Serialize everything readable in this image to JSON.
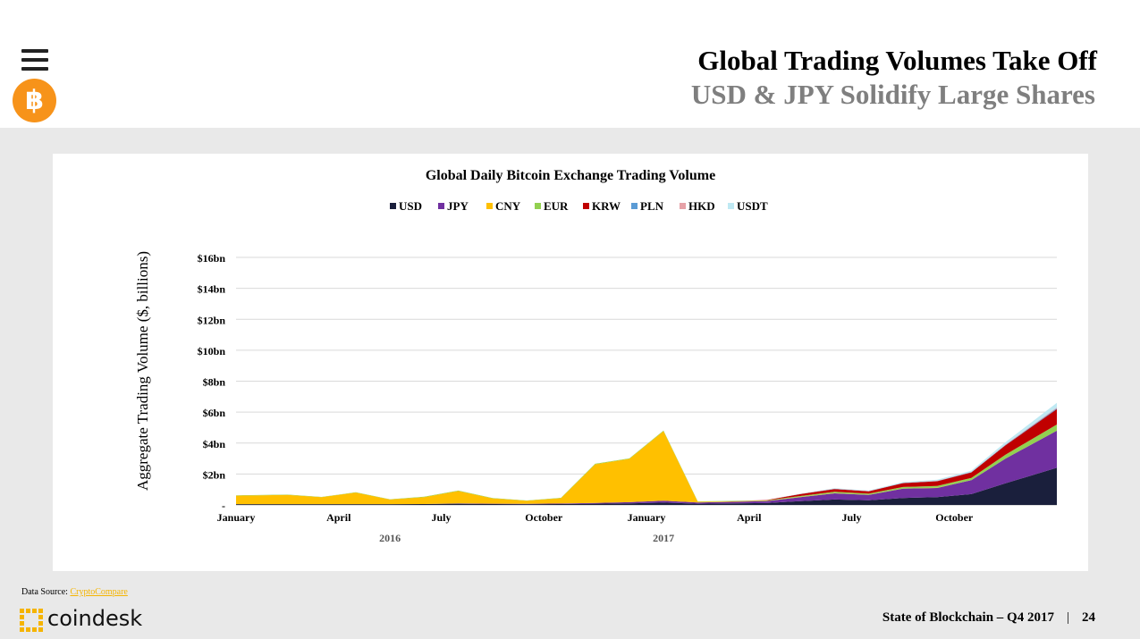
{
  "header": {
    "title": "Global Trading Volumes Take Off",
    "subtitle": "USD & JPY Solidify Large Shares",
    "logo_glyph": "฿",
    "menu_icon": "hamburger-menu-icon",
    "logo_icon": "bitcoin-logo-icon"
  },
  "chart_data": {
    "type": "area",
    "stacked": true,
    "title": "Global Daily Bitcoin Exchange Trading Volume",
    "ylabel": "Aggregate Trading Volume ($, billions)",
    "xlabel": "",
    "ylim": [
      0,
      16
    ],
    "yticks": [
      {
        "value": 0,
        "label": "-"
      },
      {
        "value": 2,
        "label": "$2bn"
      },
      {
        "value": 4,
        "label": "$4bn"
      },
      {
        "value": 6,
        "label": "$6bn"
      },
      {
        "value": 8,
        "label": "$8bn"
      },
      {
        "value": 10,
        "label": "$10bn"
      },
      {
        "value": 12,
        "label": "$12bn"
      },
      {
        "value": 14,
        "label": "$14bn"
      },
      {
        "value": 16,
        "label": "$16bn"
      }
    ],
    "xlim": [
      "2016-01",
      "2017-12"
    ],
    "xticks": [
      {
        "value": "2016-01",
        "label": "January"
      },
      {
        "value": "2016-04",
        "label": "April"
      },
      {
        "value": "2016-07",
        "label": "July"
      },
      {
        "value": "2016-10",
        "label": "October"
      },
      {
        "value": "2017-01",
        "label": "January"
      },
      {
        "value": "2017-04",
        "label": "April"
      },
      {
        "value": "2017-07",
        "label": "July"
      },
      {
        "value": "2017-10",
        "label": "October"
      }
    ],
    "year_labels": [
      {
        "value": "2016-05",
        "label": "2016"
      },
      {
        "value": "2017-01",
        "label": "2017"
      }
    ],
    "grid": true,
    "legend_position": "top",
    "x": [
      "2016-01",
      "2016-02",
      "2016-03",
      "2016-04",
      "2016-05",
      "2016-06",
      "2016-07",
      "2016-08",
      "2016-09",
      "2016-10",
      "2016-11",
      "2016-12",
      "2017-01",
      "2017-02",
      "2017-03",
      "2017-04",
      "2017-05",
      "2017-06",
      "2017-07",
      "2017-08",
      "2017-09",
      "2017-10",
      "2017-11",
      "2017-12"
    ],
    "series": [
      {
        "name": "USD",
        "color": "#1a1f3c",
        "values": [
          0.05,
          0.05,
          0.05,
          0.05,
          0.05,
          0.06,
          0.08,
          0.06,
          0.05,
          0.06,
          0.08,
          0.1,
          0.15,
          0.08,
          0.1,
          0.12,
          0.25,
          0.35,
          0.3,
          0.45,
          0.5,
          0.7,
          1.4,
          2.4
        ]
      },
      {
        "name": "JPY",
        "color": "#7030a0",
        "values": [
          0.0,
          0.0,
          0.0,
          0.0,
          0.0,
          0.0,
          0.02,
          0.02,
          0.02,
          0.03,
          0.05,
          0.08,
          0.12,
          0.08,
          0.1,
          0.12,
          0.25,
          0.4,
          0.35,
          0.6,
          0.6,
          0.9,
          1.6,
          2.4
        ]
      },
      {
        "name": "CNY",
        "color": "#ffc000",
        "values": [
          0.55,
          0.6,
          0.45,
          0.75,
          0.3,
          0.45,
          0.8,
          0.35,
          0.2,
          0.35,
          2.5,
          2.8,
          4.5,
          0.05,
          0.03,
          0.02,
          0.02,
          0.02,
          0.01,
          0.01,
          0.01,
          0.0,
          0.0,
          0.0
        ]
      },
      {
        "name": "EUR",
        "color": "#92d050",
        "values": [
          0.02,
          0.02,
          0.02,
          0.02,
          0.02,
          0.02,
          0.03,
          0.02,
          0.02,
          0.02,
          0.03,
          0.03,
          0.04,
          0.02,
          0.03,
          0.03,
          0.06,
          0.08,
          0.07,
          0.1,
          0.12,
          0.15,
          0.25,
          0.4
        ]
      },
      {
        "name": "KRW",
        "color": "#c00000",
        "values": [
          0.0,
          0.0,
          0.0,
          0.0,
          0.0,
          0.0,
          0.0,
          0.0,
          0.0,
          0.0,
          0.0,
          0.0,
          0.0,
          0.0,
          0.0,
          0.02,
          0.12,
          0.18,
          0.15,
          0.25,
          0.3,
          0.35,
          0.6,
          1.0
        ]
      },
      {
        "name": "PLN",
        "color": "#5b9bd5",
        "values": [
          0.0,
          0.0,
          0.0,
          0.0,
          0.0,
          0.0,
          0.0,
          0.0,
          0.0,
          0.0,
          0.0,
          0.0,
          0.0,
          0.0,
          0.0,
          0.0,
          0.01,
          0.01,
          0.01,
          0.01,
          0.02,
          0.02,
          0.03,
          0.05
        ]
      },
      {
        "name": "HKD",
        "color": "#e6a1a7",
        "values": [
          0.0,
          0.0,
          0.0,
          0.0,
          0.0,
          0.0,
          0.0,
          0.0,
          0.0,
          0.0,
          0.0,
          0.0,
          0.0,
          0.0,
          0.0,
          0.0,
          0.01,
          0.01,
          0.01,
          0.01,
          0.02,
          0.02,
          0.03,
          0.05
        ]
      },
      {
        "name": "USDT",
        "color": "#bfe9f3",
        "values": [
          0.0,
          0.0,
          0.0,
          0.0,
          0.0,
          0.0,
          0.0,
          0.0,
          0.0,
          0.0,
          0.0,
          0.0,
          0.0,
          0.0,
          0.0,
          0.0,
          0.01,
          0.03,
          0.03,
          0.05,
          0.06,
          0.08,
          0.15,
          0.3
        ]
      }
    ]
  },
  "footer": {
    "source_label": "Data Source:",
    "source_link": "CryptoCompare",
    "brand": "coindesk",
    "brand_icon": "coindesk-logo-icon",
    "report": "State of Blockchain – Q4 2017",
    "separator": "|",
    "page_number": "24"
  }
}
